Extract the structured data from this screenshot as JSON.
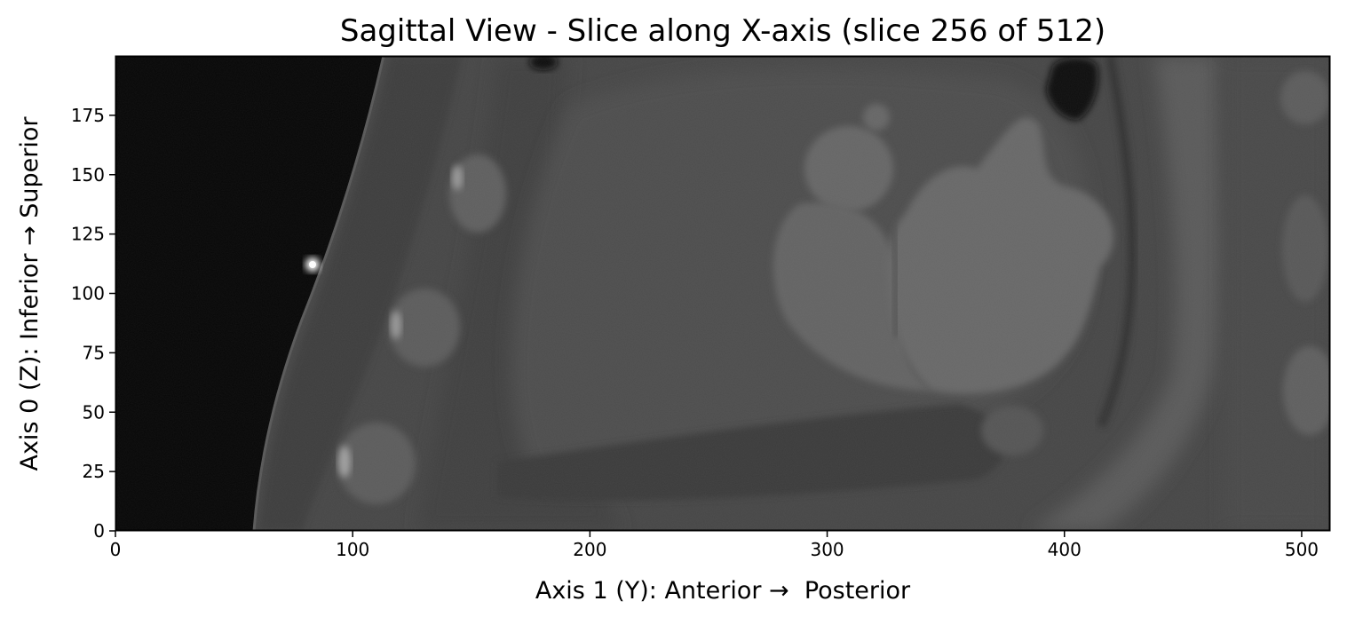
{
  "figure": {
    "title": "Sagittal View - Slice along X-axis (slice 256 of 512)",
    "xlabel": "Axis 1 (Y): Anterior →  Posterior",
    "ylabel": "Axis 0 (Z): Inferior → Superior",
    "x_ticks": [
      "0",
      "100",
      "200",
      "300",
      "400",
      "500"
    ],
    "y_ticks": [
      "0",
      "25",
      "50",
      "75",
      "100",
      "125",
      "150",
      "175"
    ],
    "x_range": [
      0,
      512
    ],
    "y_range": [
      0,
      200
    ],
    "colormap": "grayscale"
  }
}
